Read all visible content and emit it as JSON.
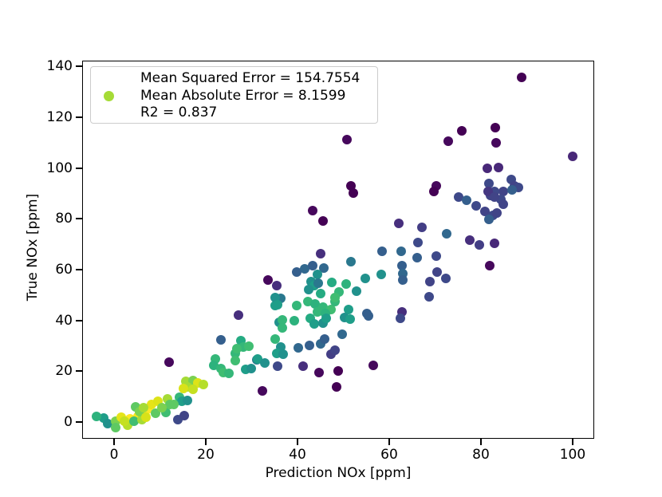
{
  "figure": {
    "background": "#ffffff"
  },
  "chart_data": {
    "type": "scatter",
    "title": "",
    "xlabel": "Prediction NOx [ppm]",
    "ylabel": "True NOx [ppm]",
    "xlim": [
      -6.96,
      104.7
    ],
    "ylim": [
      -6.6,
      142.3
    ],
    "xticks": [
      0,
      20,
      40,
      60,
      80,
      100
    ],
    "yticks": [
      0,
      20,
      40,
      60,
      80,
      100,
      120,
      140
    ],
    "grid": false,
    "colormap": "viridis",
    "marker_size_px": 12,
    "stats": {
      "mean_squared_error": 154.7554,
      "mean_absolute_error": 8.1599,
      "r2": 0.837
    },
    "legend": {
      "position": "upper left",
      "marker_color": "#a5db36",
      "lines": [
        "Mean Squared Error = 154.7554",
        "Mean Absolute Error = 8.1599",
        "R2 = 0.837"
      ]
    },
    "points": [
      [
        88.9,
        135.7,
        "#440154"
      ],
      [
        75.8,
        114.6,
        "#440154"
      ],
      [
        83.1,
        115.9,
        "#440154"
      ],
      [
        72.9,
        110.6,
        "#46085c"
      ],
      [
        83.3,
        109.9,
        "#46085c"
      ],
      [
        100.0,
        104.6,
        "#482878"
      ],
      [
        50.8,
        111.2,
        "#46085c"
      ],
      [
        51.7,
        93.0,
        "#440154"
      ],
      [
        70.3,
        93.0,
        "#46085c"
      ],
      [
        69.7,
        90.8,
        "#440154"
      ],
      [
        81.4,
        99.9,
        "#482878"
      ],
      [
        83.8,
        100.2,
        "#482878"
      ],
      [
        81.7,
        93.9,
        "#3e4989"
      ],
      [
        86.6,
        95.5,
        "#3e4989"
      ],
      [
        87.3,
        93.0,
        "#414487"
      ],
      [
        84.9,
        90.8,
        "#414487"
      ],
      [
        88.2,
        92.3,
        "#3e4989"
      ],
      [
        86.8,
        91.4,
        "#355f8d"
      ],
      [
        82.9,
        90.8,
        "#3e4989"
      ],
      [
        82.1,
        89.2,
        "#414487"
      ],
      [
        84.3,
        87.6,
        "#3e4989"
      ],
      [
        84.9,
        85.7,
        "#414487"
      ],
      [
        81.6,
        90.8,
        "#453781"
      ],
      [
        82.9,
        88.6,
        "#414487"
      ],
      [
        75.1,
        88.6,
        "#3e4989"
      ],
      [
        76.9,
        87.3,
        "#355f8d"
      ],
      [
        79.0,
        85.1,
        "#3e4989"
      ],
      [
        80.9,
        82.9,
        "#414487"
      ],
      [
        82.6,
        81.3,
        "#3e4989"
      ],
      [
        83.5,
        82.3,
        "#414487"
      ],
      [
        81.7,
        79.8,
        "#355f8d"
      ],
      [
        72.5,
        74.1,
        "#31688e"
      ],
      [
        77.6,
        71.6,
        "#472f7d"
      ],
      [
        79.7,
        69.7,
        "#433e85"
      ],
      [
        82.9,
        70.3,
        "#482878"
      ],
      [
        81.9,
        61.6,
        "#46085c"
      ],
      [
        70.3,
        65.3,
        "#3e4989"
      ],
      [
        70.4,
        59.0,
        "#414487"
      ],
      [
        72.3,
        56.5,
        "#3e4989"
      ],
      [
        68.9,
        55.3,
        "#414487"
      ],
      [
        68.7,
        49.3,
        "#3e4989"
      ],
      [
        52.2,
        90.1,
        "#440154"
      ],
      [
        43.3,
        83.2,
        "#46085c"
      ],
      [
        45.6,
        79.1,
        "#440154"
      ],
      [
        62.1,
        78.2,
        "#472f7d"
      ],
      [
        67.1,
        76.6,
        "#433e85"
      ],
      [
        66.3,
        70.7,
        "#3e4989"
      ],
      [
        58.4,
        67.2,
        "#355f8d"
      ],
      [
        62.6,
        67.2,
        "#31688e"
      ],
      [
        45.0,
        66.3,
        "#472f7d"
      ],
      [
        66.1,
        64.7,
        "#355f8d"
      ],
      [
        51.7,
        63.1,
        "#2a788e"
      ],
      [
        39.8,
        59.0,
        "#355f8d"
      ],
      [
        41.6,
        60.3,
        "#31688e"
      ],
      [
        43.3,
        61.6,
        "#355f8d"
      ],
      [
        45.7,
        60.6,
        "#31688e"
      ],
      [
        44.3,
        58.1,
        "#21918c"
      ],
      [
        62.8,
        61.6,
        "#355f8d"
      ],
      [
        63.0,
        58.4,
        "#31688e"
      ],
      [
        58.3,
        58.1,
        "#21918c"
      ],
      [
        33.6,
        55.9,
        "#46085c"
      ],
      [
        35.5,
        53.7,
        "#472f7d"
      ],
      [
        43.0,
        55.3,
        "#21918c"
      ],
      [
        43.7,
        53.7,
        "#1f9e89"
      ],
      [
        44.5,
        54.6,
        "#2a788e"
      ],
      [
        47.5,
        55.0,
        "#25ab82"
      ],
      [
        54.8,
        56.5,
        "#21918c"
      ],
      [
        63.0,
        55.9,
        "#355f8d"
      ],
      [
        50.6,
        54.3,
        "#2db27d"
      ],
      [
        42.4,
        52.1,
        "#21918c"
      ],
      [
        45.0,
        50.6,
        "#25ab82"
      ],
      [
        49.0,
        51.2,
        "#35b779"
      ],
      [
        52.9,
        51.5,
        "#21918c"
      ],
      [
        36.3,
        48.7,
        "#2a788e"
      ],
      [
        35.1,
        45.9,
        "#1f9e89"
      ],
      [
        39.8,
        45.9,
        "#35b779"
      ],
      [
        42.3,
        47.4,
        "#35b779"
      ],
      [
        43.8,
        46.5,
        "#2db27d"
      ],
      [
        45.6,
        45.2,
        "#35b779"
      ],
      [
        47.3,
        44.3,
        "#40bd72"
      ],
      [
        44.3,
        43.3,
        "#35b779"
      ],
      [
        46.1,
        42.7,
        "#2db27d"
      ],
      [
        48.2,
        47.4,
        "#35b779"
      ],
      [
        48.2,
        49.0,
        "#40bd72"
      ],
      [
        51.1,
        44.3,
        "#1f9e89"
      ],
      [
        55.1,
        42.7,
        "#355f8d"
      ],
      [
        62.8,
        43.3,
        "#472f7d"
      ],
      [
        35.1,
        49.0,
        "#21918c"
      ],
      [
        35.7,
        46.2,
        "#1f9e89"
      ],
      [
        36.0,
        39.3,
        "#21918c"
      ],
      [
        27.1,
        42.0,
        "#472f7d"
      ],
      [
        36.7,
        40.2,
        "#35b779"
      ],
      [
        39.3,
        39.9,
        "#2db27d"
      ],
      [
        36.7,
        37.1,
        "#35b779"
      ],
      [
        42.8,
        40.8,
        "#25ab82"
      ],
      [
        43.7,
        38.6,
        "#1f9e89"
      ],
      [
        45.6,
        38.9,
        "#21918c"
      ],
      [
        46.3,
        40.8,
        "#1f9e89"
      ],
      [
        50.3,
        41.1,
        "#21918c"
      ],
      [
        51.5,
        40.5,
        "#1f9e89"
      ],
      [
        55.5,
        41.8,
        "#355f8d"
      ],
      [
        62.4,
        40.8,
        "#3e4989"
      ],
      [
        35.1,
        32.7,
        "#35b779"
      ],
      [
        49.7,
        34.5,
        "#31688e"
      ],
      [
        36.3,
        29.5,
        "#21918c"
      ],
      [
        35.5,
        27.0,
        "#1f9e89"
      ],
      [
        36.9,
        26.7,
        "#21918c"
      ],
      [
        40.2,
        29.2,
        "#31688e"
      ],
      [
        42.6,
        30.2,
        "#355f8d"
      ],
      [
        45.0,
        30.8,
        "#31688e"
      ],
      [
        45.9,
        32.7,
        "#355f8d"
      ],
      [
        47.3,
        26.7,
        "#433e85"
      ],
      [
        48.2,
        28.3,
        "#414487"
      ],
      [
        31.1,
        24.5,
        "#2a788e"
      ],
      [
        35.7,
        22.0,
        "#3e4989"
      ],
      [
        41.2,
        22.0,
        "#472f7d"
      ],
      [
        44.7,
        19.5,
        "#46085c"
      ],
      [
        48.9,
        20.1,
        "#440154"
      ],
      [
        56.5,
        22.3,
        "#46085c"
      ],
      [
        48.5,
        13.8,
        "#440154"
      ],
      [
        32.3,
        12.2,
        "#46085c"
      ],
      [
        23.3,
        32.3,
        "#355f8d"
      ],
      [
        27.7,
        32.0,
        "#25ab82"
      ],
      [
        28.2,
        29.5,
        "#35b779"
      ],
      [
        29.4,
        29.8,
        "#40bd72"
      ],
      [
        26.4,
        27.0,
        "#35b779"
      ],
      [
        26.4,
        24.2,
        "#40bd72"
      ],
      [
        31.3,
        24.8,
        "#1f9e89"
      ],
      [
        32.9,
        23.2,
        "#21918c"
      ],
      [
        12.0,
        23.6,
        "#46085c"
      ],
      [
        22.1,
        24.8,
        "#35b779"
      ],
      [
        21.7,
        22.3,
        "#2db27d"
      ],
      [
        23.3,
        21.0,
        "#35b779"
      ],
      [
        23.8,
        19.5,
        "#40bd72"
      ],
      [
        25.0,
        19.2,
        "#35b779"
      ],
      [
        28.7,
        20.7,
        "#1f9e89"
      ],
      [
        29.9,
        21.0,
        "#21918c"
      ],
      [
        26.8,
        28.9,
        "#40bd72"
      ],
      [
        15.7,
        16.0,
        "#a5db36"
      ],
      [
        17.2,
        16.3,
        "#7ad151"
      ],
      [
        18.3,
        15.4,
        "#dde318"
      ],
      [
        19.5,
        14.8,
        "#b5de2b"
      ],
      [
        16.0,
        13.8,
        "#a5db36"
      ],
      [
        15.1,
        13.2,
        "#d8e219"
      ],
      [
        17.2,
        12.9,
        "#c5e021"
      ],
      [
        -2.3,
        1.6,
        "#1f9e89"
      ],
      [
        -3.8,
        2.2,
        "#2db27d"
      ],
      [
        -1.4,
        -0.6,
        "#21918c"
      ],
      [
        0.3,
        0.3,
        "#7ad151"
      ],
      [
        1.5,
        1.9,
        "#e5e419"
      ],
      [
        3.5,
        1.3,
        "#fde725"
      ],
      [
        5.2,
        2.2,
        "#f4e61e"
      ],
      [
        4.7,
        6.0,
        "#5ec962"
      ],
      [
        7.3,
        5.0,
        "#fde725"
      ],
      [
        8.2,
        6.9,
        "#e5e419"
      ],
      [
        9.6,
        8.2,
        "#dde318"
      ],
      [
        9.0,
        3.5,
        "#5ec962"
      ],
      [
        11.3,
        3.8,
        "#40bd72"
      ],
      [
        11.7,
        9.1,
        "#a5db36"
      ],
      [
        12.2,
        6.9,
        "#5ec962"
      ],
      [
        14.3,
        9.7,
        "#35b779"
      ],
      [
        14.8,
        8.2,
        "#1f9e89"
      ],
      [
        16.0,
        8.5,
        "#21918c"
      ],
      [
        13.9,
        1.0,
        "#3e4989"
      ],
      [
        15.3,
        2.4,
        "#414487"
      ],
      [
        3.0,
        -1.3,
        "#b5de2b"
      ],
      [
        0.3,
        -2.2,
        "#5ec962"
      ],
      [
        4.3,
        0.3,
        "#40bd72"
      ],
      [
        6.0,
        0.8,
        "#a5db36"
      ],
      [
        2.2,
        0.3,
        "#c5e021"
      ],
      [
        5.5,
        4.2,
        "#7ad151"
      ],
      [
        7.0,
        2.0,
        "#d8e219"
      ],
      [
        10.5,
        5.5,
        "#7ad151"
      ],
      [
        13.0,
        7.0,
        "#5ec962"
      ],
      [
        6.5,
        5.8,
        "#a5db36"
      ]
    ]
  }
}
